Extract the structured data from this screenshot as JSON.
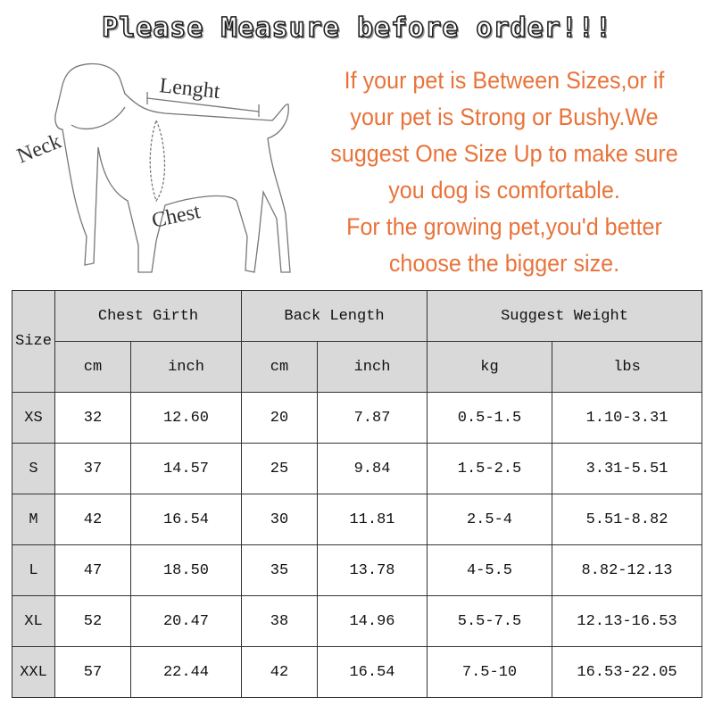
{
  "title": "Please Measure before order!!!",
  "diagram_labels": {
    "neck": "Neck",
    "length": "Lenght",
    "chest": "Chest"
  },
  "advice_lines": [
    "If your pet is Between Sizes,or if",
    "your pet is Strong or Bushy.We",
    "suggest One Size Up to make sure",
    "you dog is comfortable.",
    "For the growing pet,you'd better",
    "choose the bigger size."
  ],
  "colors": {
    "advice_text": "#e8733a",
    "header_bg": "#d9d9d9"
  },
  "table": {
    "size_header": "Size",
    "groups": [
      "Chest Girth",
      "Back Length",
      "Suggest Weight"
    ],
    "units": [
      "cm",
      "inch",
      "cm",
      "inch",
      "kg",
      "lbs"
    ],
    "rows": [
      [
        "XS",
        "32",
        "12.60",
        "20",
        "7.87",
        "0.5-1.5",
        "1.10-3.31"
      ],
      [
        "S",
        "37",
        "14.57",
        "25",
        "9.84",
        "1.5-2.5",
        "3.31-5.51"
      ],
      [
        "M",
        "42",
        "16.54",
        "30",
        "11.81",
        "2.5-4",
        "5.51-8.82"
      ],
      [
        "L",
        "47",
        "18.50",
        "35",
        "13.78",
        "4-5.5",
        "8.82-12.13"
      ],
      [
        "XL",
        "52",
        "20.47",
        "38",
        "14.96",
        "5.5-7.5",
        "12.13-16.53"
      ],
      [
        "XXL",
        "57",
        "22.44",
        "42",
        "16.54",
        "7.5-10",
        "16.53-22.05"
      ]
    ]
  }
}
